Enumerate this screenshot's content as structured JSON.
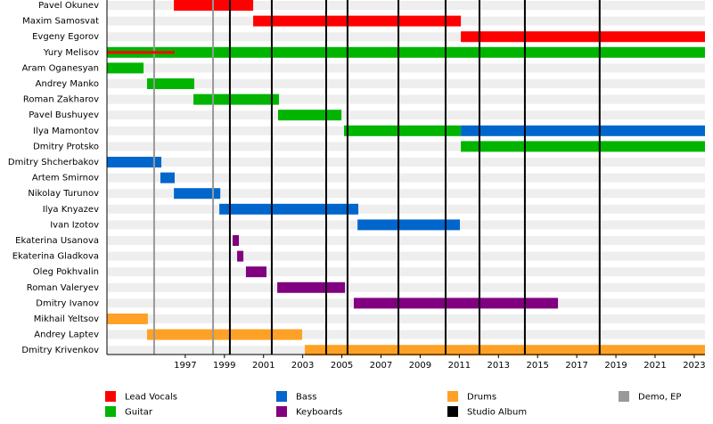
{
  "chart_data": {
    "type": "timeline",
    "categories": [
      "Pavel Okunev",
      "Maxim Samosvat",
      "Evgeny Egorov",
      "Yury Melisov",
      "Aram Oganesyan",
      "Andrey Manko",
      "Roman Zakharov",
      "Pavel Bushuyev",
      "Ilya Mamontov",
      "Dmitry Protsko",
      "Dmitry Shcherbakov",
      "Artem Smirnov",
      "Nikolay Turunov",
      "Ilya Knyazev",
      "Ivan Izotov",
      "Ekaterina Usanova",
      "Ekaterina Gladkova",
      "Oleg Pokhvalin",
      "Roman Valeryev",
      "Dmitry Ivanov",
      "Mikhail Yeltsov",
      "Andrey Laptev",
      "Dmitry Krivenkov"
    ],
    "series": [
      {
        "name": "Lead Vocals",
        "color": "#ff0000",
        "values": [
          [
            1996.42,
            2000.47
          ],
          [
            2000.47,
            2011.08
          ],
          [
            2011.08,
            2023.55
          ],
          [
            1993.0,
            1996.46
          ],
          null,
          null,
          null,
          null,
          null,
          null,
          null,
          null,
          null,
          null,
          null,
          null,
          null,
          null,
          null,
          null,
          null,
          null,
          null
        ]
      },
      {
        "name": "Guitar",
        "color": "#00b400",
        "values": [
          null,
          null,
          null,
          [
            1993.0,
            2023.55
          ],
          [
            1993.0,
            1994.87
          ],
          [
            1995.05,
            1997.46
          ],
          [
            1997.42,
            2001.79
          ],
          [
            2001.74,
            2004.98
          ],
          [
            2005.11,
            2011.08
          ],
          [
            2011.08,
            2023.55
          ],
          null,
          null,
          null,
          null,
          null,
          null,
          null,
          null,
          null,
          null,
          null,
          null,
          null
        ]
      },
      {
        "name": "Bass",
        "color": "#0066cc",
        "values": [
          null,
          null,
          null,
          null,
          null,
          null,
          null,
          null,
          [
            2011.08,
            2023.55
          ],
          null,
          [
            1993.0,
            1995.78
          ],
          [
            1995.73,
            1996.46
          ],
          [
            1996.42,
            1998.79
          ],
          [
            1998.74,
            2005.84
          ],
          [
            2005.8,
            2011.03
          ],
          null,
          null,
          null,
          null,
          null,
          null,
          null,
          null
        ]
      },
      {
        "name": "Keyboards",
        "color": "#800080",
        "values": [
          null,
          null,
          null,
          null,
          null,
          null,
          null,
          null,
          null,
          null,
          null,
          null,
          null,
          null,
          null,
          [
            1999.42,
            1999.74
          ],
          [
            1999.65,
            1999.97
          ],
          [
            2000.1,
            2001.15
          ],
          [
            2001.7,
            2005.16
          ],
          [
            2005.61,
            2016.04
          ],
          null,
          null,
          null
        ]
      },
      {
        "name": "Drums",
        "color": "#ffa126",
        "values": [
          null,
          null,
          null,
          null,
          null,
          null,
          null,
          null,
          null,
          null,
          null,
          null,
          null,
          null,
          null,
          null,
          null,
          null,
          null,
          null,
          [
            1993.0,
            1995.09
          ],
          [
            1995.05,
            2002.97
          ],
          [
            2003.11,
            2023.55
          ]
        ]
      }
    ],
    "events": [
      {
        "name": "Demo, EP",
        "color": "#999999",
        "values": [
          1995.41,
          1998.42
        ]
      },
      {
        "name": "Studio Album",
        "color": "#000000",
        "values": [
          1999.28,
          2001.42,
          2004.2,
          2005.29,
          2007.89,
          2010.3,
          2012.03,
          2014.35,
          2018.17
        ]
      }
    ],
    "xlim": [
      1993.0,
      2023.55
    ],
    "xticks": [
      1997,
      1999,
      2001,
      2003,
      2005,
      2007,
      2009,
      2011,
      2013,
      2015,
      2017,
      2019,
      2021,
      2023
    ]
  }
}
